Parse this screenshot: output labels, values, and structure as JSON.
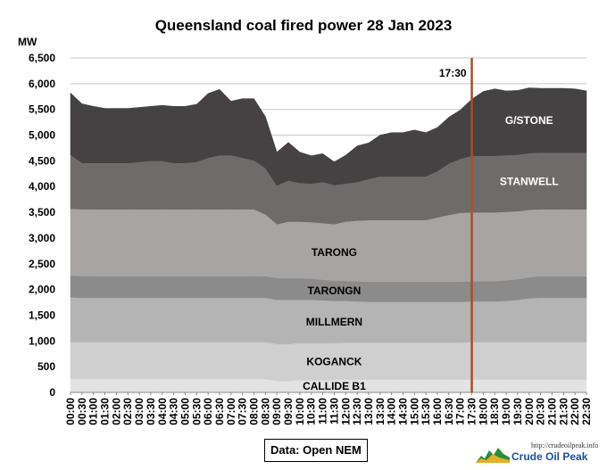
{
  "chart_data": {
    "type": "area",
    "stacked": true,
    "title": "Queensland  coal fired power 28 Jan 2023",
    "ylabel": "MW",
    "ylim": [
      0,
      6500
    ],
    "yticks": [
      "0",
      "500",
      "1,000",
      "1,500",
      "2,000",
      "2,500",
      "3,000",
      "3,500",
      "4,000",
      "4,500",
      "5,000",
      "5,500",
      "6,000",
      "6,500"
    ],
    "x": [
      "00:00",
      "00:30",
      "01:00",
      "01:30",
      "02:00",
      "02:30",
      "03:00",
      "03:30",
      "04:00",
      "04:30",
      "05:00",
      "05:30",
      "06:00",
      "06:30",
      "07:00",
      "07:30",
      "08:00",
      "08:30",
      "09:00",
      "09:30",
      "10:00",
      "10:30",
      "11:00",
      "11:30",
      "12:00",
      "12:30",
      "13:00",
      "13:30",
      "14:00",
      "14:30",
      "15:00",
      "15:30",
      "16:00",
      "16:30",
      "17:00",
      "17:30",
      "18:00",
      "18:30",
      "19:00",
      "19:30",
      "20:00",
      "20:30",
      "21:00",
      "21:30",
      "22:00",
      "22:30"
    ],
    "series": [
      {
        "name": "CALLIDE B1",
        "color": "#e3e3e3",
        "values": [
          260,
          260,
          260,
          260,
          260,
          260,
          260,
          260,
          260,
          260,
          260,
          260,
          260,
          260,
          260,
          260,
          260,
          260,
          220,
          220,
          240,
          240,
          240,
          240,
          250,
          250,
          250,
          250,
          250,
          250,
          250,
          250,
          250,
          250,
          250,
          250,
          250,
          250,
          250,
          250,
          250,
          250,
          250,
          250,
          250,
          250
        ]
      },
      {
        "name": "KOGANCK",
        "color": "#cfcfcf",
        "values": [
          720,
          720,
          720,
          720,
          720,
          720,
          720,
          720,
          720,
          720,
          720,
          720,
          720,
          720,
          720,
          720,
          720,
          720,
          720,
          720,
          720,
          720,
          720,
          720,
          720,
          720,
          720,
          720,
          720,
          720,
          720,
          720,
          720,
          720,
          720,
          730,
          730,
          730,
          730,
          730,
          730,
          730,
          730,
          730,
          730,
          730
        ]
      },
      {
        "name": "MILLMERN",
        "color": "#b4b4b4",
        "values": [
          870,
          860,
          860,
          860,
          860,
          860,
          860,
          860,
          860,
          860,
          860,
          860,
          860,
          860,
          860,
          860,
          860,
          860,
          860,
          860,
          840,
          840,
          830,
          820,
          810,
          800,
          790,
          790,
          790,
          790,
          790,
          790,
          790,
          790,
          790,
          790,
          790,
          790,
          800,
          820,
          850,
          860,
          860,
          860,
          860,
          860
        ]
      },
      {
        "name": "TARONGN",
        "color": "#8b8b8b",
        "values": [
          420,
          420,
          420,
          420,
          420,
          420,
          420,
          420,
          420,
          420,
          420,
          420,
          420,
          420,
          420,
          420,
          420,
          420,
          420,
          420,
          420,
          410,
          400,
          390,
          390,
          390,
          390,
          390,
          390,
          390,
          390,
          390,
          390,
          390,
          390,
          390,
          390,
          390,
          400,
          400,
          410,
          420,
          420,
          420,
          420,
          420
        ]
      },
      {
        "name": "TARONG",
        "color": "#a7a4a4",
        "values": [
          1300,
          1300,
          1300,
          1300,
          1300,
          1300,
          1300,
          1300,
          1300,
          1300,
          1300,
          1300,
          1300,
          1300,
          1300,
          1300,
          1300,
          1200,
          1050,
          1100,
          1100,
          1100,
          1100,
          1100,
          1150,
          1180,
          1200,
          1200,
          1200,
          1200,
          1200,
          1200,
          1250,
          1300,
          1340,
          1340,
          1340,
          1340,
          1330,
          1320,
          1310,
          1300,
          1300,
          1300,
          1300,
          1300
        ]
      },
      {
        "name": "STANWELL",
        "color": "#6e6b6b",
        "values": [
          1050,
          900,
          900,
          900,
          900,
          900,
          920,
          940,
          940,
          900,
          900,
          920,
          1000,
          1050,
          1050,
          1000,
          950,
          900,
          750,
          800,
          750,
          750,
          800,
          760,
          740,
          750,
          800,
          850,
          850,
          850,
          850,
          850,
          900,
          1000,
          1050,
          1100,
          1100,
          1100,
          1100,
          1100,
          1100,
          1100,
          1100,
          1100,
          1100,
          1100
        ]
      },
      {
        "name": "G/STONE",
        "color": "#444242",
        "values": [
          1200,
          1150,
          1100,
          1060,
          1060,
          1060,
          1060,
          1060,
          1080,
          1100,
          1100,
          1120,
          1250,
          1280,
          1050,
          1150,
          1200,
          1000,
          650,
          740,
          600,
          540,
          550,
          450,
          550,
          700,
          700,
          800,
          850,
          850,
          900,
          850,
          850,
          900,
          950,
          1100,
          1250,
          1300,
          1250,
          1250,
          1270,
          1250,
          1250,
          1250,
          1240,
          1200
        ]
      }
    ],
    "annotations": [
      {
        "x": "17:30",
        "label": "17:30",
        "color": "#a0522d"
      }
    ],
    "grid": "horizontal",
    "legend": "labels inside areas"
  },
  "source_note": "Data: Open NEM",
  "logo": {
    "url": "http://crudeoilpeak.info",
    "name": "Crude Oil Peak"
  }
}
